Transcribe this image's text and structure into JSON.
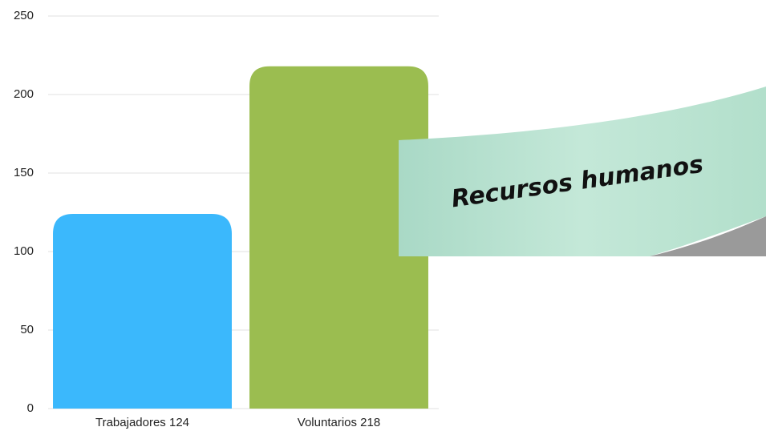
{
  "chart_data": {
    "type": "bar",
    "categories": [
      "Trabajadores 124",
      "Voluntarios 218"
    ],
    "values": [
      124,
      218
    ],
    "colors": [
      "#3bb8fc",
      "#9bbd50"
    ],
    "ylim": [
      0,
      250
    ],
    "yticks": [
      0,
      50,
      100,
      150,
      200,
      250
    ],
    "grid": true,
    "annotation": "Recursos humanos"
  }
}
